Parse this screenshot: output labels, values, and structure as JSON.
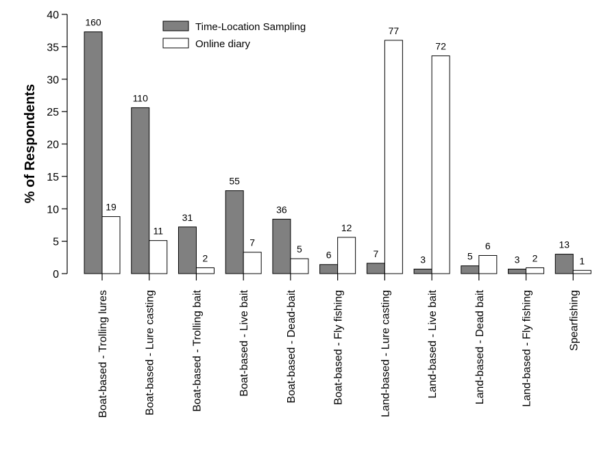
{
  "chart_data": {
    "type": "bar",
    "ylabel": "% of Respondents",
    "xlabel": "",
    "ylim": [
      0,
      40
    ],
    "yticks": [
      0,
      5,
      10,
      15,
      20,
      25,
      30,
      35,
      40
    ],
    "legend_position": "top-center",
    "categories": [
      "Boat-based - Trolling lures",
      "Boat-based - Lure casting",
      "Boat-based - Trolling bait",
      "Boat-based - Live bait",
      "Boat-based - Dead-bait",
      "Boat-based - Fly fishing",
      "Land-based - Lure casting",
      "Land-based - Live bait",
      "Land-based - Dead bait",
      "Land-based - Fly fishing",
      "Spearfishing"
    ],
    "series": [
      {
        "name": "Time-Location Sampling",
        "color": "#808080",
        "values": [
          37.3,
          25.6,
          7.2,
          12.8,
          8.4,
          1.4,
          1.6,
          0.7,
          1.2,
          0.7,
          3.0
        ],
        "labels": [
          "160",
          "110",
          "31",
          "55",
          "36",
          "6",
          "7",
          "3",
          "5",
          "3",
          "13"
        ]
      },
      {
        "name": "Online diary",
        "color": "#ffffff",
        "values": [
          8.8,
          5.1,
          0.9,
          3.3,
          2.3,
          5.6,
          36.0,
          33.6,
          2.8,
          0.9,
          0.5
        ],
        "labels": [
          "19",
          "11",
          "2",
          "7",
          "5",
          "12",
          "77",
          "72",
          "6",
          "2",
          "1"
        ]
      }
    ]
  }
}
